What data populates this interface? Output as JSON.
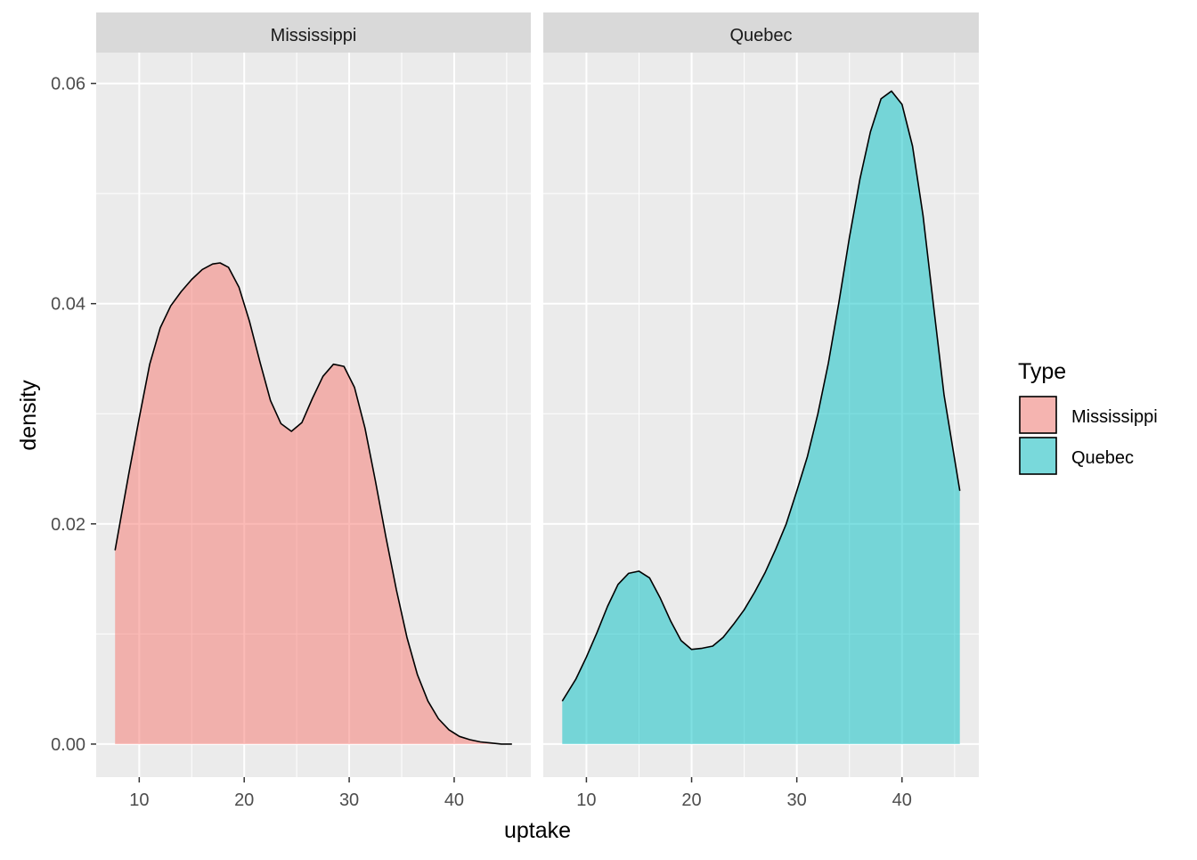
{
  "chart_data": {
    "type": "area",
    "subtype": "faceted density",
    "xlabel": "uptake",
    "ylabel": "density",
    "x_ticks": [
      10,
      20,
      30,
      40
    ],
    "y_ticks": [
      "0.00",
      "0.02",
      "0.04",
      "0.06"
    ],
    "xlim": [
      5.9,
      47.3
    ],
    "ylim": [
      -0.003,
      0.0628
    ],
    "grid": "on",
    "legend": {
      "title": "Type",
      "position": "right",
      "entries": [
        {
          "label": "Mississippi",
          "color": "#F8766D"
        },
        {
          "label": "Quebec",
          "color": "#00BFC4"
        }
      ]
    },
    "panels": [
      {
        "strip": "Mississippi",
        "color": "#F8766D",
        "x": [
          7.7,
          9.0,
          10.0,
          11.0,
          12.0,
          13.0,
          14.0,
          15.0,
          16.0,
          17.0,
          17.7,
          18.5,
          19.5,
          20.5,
          21.5,
          22.5,
          23.5,
          24.5,
          25.5,
          26.5,
          27.5,
          28.5,
          29.5,
          30.5,
          31.5,
          32.5,
          33.5,
          34.5,
          35.5,
          36.5,
          37.5,
          38.5,
          39.5,
          40.5,
          41.5,
          42.5,
          43.5,
          44.5,
          45.5
        ],
        "y": [
          0.0176,
          0.0245,
          0.0296,
          0.0345,
          0.0378,
          0.0398,
          0.0411,
          0.0422,
          0.0431,
          0.0436,
          0.0437,
          0.0433,
          0.0415,
          0.0384,
          0.0347,
          0.0312,
          0.0291,
          0.0284,
          0.0292,
          0.0314,
          0.0334,
          0.0345,
          0.0343,
          0.0324,
          0.0287,
          0.0239,
          0.0188,
          0.014,
          0.0097,
          0.0063,
          0.0039,
          0.0023,
          0.0013,
          0.0007,
          0.0004,
          0.0002,
          0.0001,
          0.0,
          0.0
        ]
      },
      {
        "strip": "Quebec",
        "color": "#00BFC4",
        "x": [
          7.7,
          9.0,
          10.0,
          11.0,
          12.0,
          13.0,
          14.0,
          15.0,
          16.0,
          17.0,
          18.0,
          19.0,
          20.0,
          21.0,
          22.0,
          23.0,
          24.0,
          25.0,
          26.0,
          27.0,
          28.0,
          29.0,
          30.0,
          31.0,
          32.0,
          33.0,
          34.0,
          35.0,
          36.0,
          37.0,
          38.0,
          39.0,
          40.0,
          41.0,
          42.0,
          43.0,
          44.0,
          45.5
        ],
        "y": [
          0.0039,
          0.0059,
          0.0079,
          0.0101,
          0.0125,
          0.0145,
          0.0155,
          0.0157,
          0.0151,
          0.0133,
          0.0112,
          0.0094,
          0.0086,
          0.0087,
          0.0089,
          0.0097,
          0.0109,
          0.0122,
          0.0138,
          0.0156,
          0.0177,
          0.02,
          0.023,
          0.0261,
          0.03,
          0.0346,
          0.0401,
          0.046,
          0.0513,
          0.0556,
          0.0586,
          0.0593,
          0.0581,
          0.0543,
          0.048,
          0.0398,
          0.0317,
          0.023
        ]
      }
    ]
  }
}
